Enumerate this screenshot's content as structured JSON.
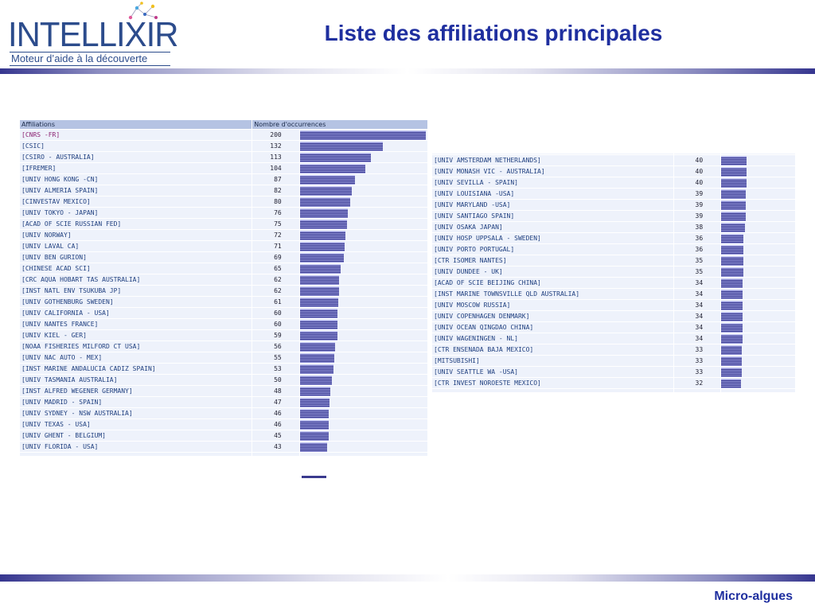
{
  "logo": {
    "word": "INTELLIXIR",
    "tagline": "Moteur d’aide à la découverte"
  },
  "title": "Liste des affiliations principales",
  "footer": "Micro-algues",
  "colors": {
    "title": "#1f2f9f",
    "bar": "#3a3a8e",
    "header": "#b5c3e3",
    "row": "#eef2fb"
  },
  "left_table": {
    "headers": [
      "Affiliations",
      "Nombre d'occurrences"
    ],
    "max_value": 200,
    "rows": [
      {
        "name": "[CNRS -FR]",
        "count": "200",
        "highlight": true
      },
      {
        "name": "[CSIC]",
        "count": "132"
      },
      {
        "name": "[CSIRO - AUSTRALIA]",
        "count": "113"
      },
      {
        "name": "[IFREMER]",
        "count": "104"
      },
      {
        "name": "[UNIV HONG KONG -CN]",
        "count": "87"
      },
      {
        "name": "[UNIV ALMERIA SPAIN]",
        "count": "82"
      },
      {
        "name": "[CINVESTAV MEXICO]",
        "count": "80"
      },
      {
        "name": "[UNIV TOKYO - JAPAN]",
        "count": "76"
      },
      {
        "name": "[ACAD OF SCIE RUSSIAN FED]",
        "count": "75"
      },
      {
        "name": "[UNIV NORWAY]",
        "count": "72"
      },
      {
        "name": "[UNIV LAVAL CA]",
        "count": "71"
      },
      {
        "name": "[UNIV BEN GURION]",
        "count": "69"
      },
      {
        "name": "[CHINESE ACAD SCI]",
        "count": "65"
      },
      {
        "name": "[CRC AQUA HOBART TAS AUSTRALIA]",
        "count": "62"
      },
      {
        "name": "[INST NATL ENV TSUKUBA JP]",
        "count": "62"
      },
      {
        "name": "[UNIV GOTHENBURG SWEDEN]",
        "count": "61"
      },
      {
        "name": "[UNIV CALIFORNIA - USA]",
        "count": "60"
      },
      {
        "name": "[UNIV NANTES FRANCE]",
        "count": "60"
      },
      {
        "name": "[UNIV KIEL - GER]",
        "count": "59"
      },
      {
        "name": "[NOAA FISHERIES MILFORD CT USA]",
        "count": "56"
      },
      {
        "name": "[UNIV NAC AUTO - MEX]",
        "count": "55"
      },
      {
        "name": "[INST MARINE ANDALUCIA CADIZ SPAIN]",
        "count": "53"
      },
      {
        "name": "[UNIV TASMANIA AUSTRALIA]",
        "count": "50"
      },
      {
        "name": "[INST ALFRED WEGENER GERMANY]",
        "count": "48"
      },
      {
        "name": "[UNIV MADRID - SPAIN]",
        "count": "47"
      },
      {
        "name": "[UNIV SYDNEY - NSW AUSTRALIA]",
        "count": "46"
      },
      {
        "name": "[UNIV TEXAS - USA]",
        "count": "46"
      },
      {
        "name": "[UNIV GHENT - BELGIUM]",
        "count": "45"
      },
      {
        "name": "[UNIV FLORIDA - USA]",
        "count": "43"
      }
    ]
  },
  "right_table": {
    "rows": [
      {
        "name": "[UNIV AMSTERDAM NETHERLANDS]",
        "count": "40"
      },
      {
        "name": "[UNIV MONASH VIC - AUSTRALIA]",
        "count": "40"
      },
      {
        "name": "[UNIV SEVILLA - SPAIN]",
        "count": "40"
      },
      {
        "name": "[UNIV LOUISIANA -USA]",
        "count": "39"
      },
      {
        "name": "[UNIV MARYLAND -USA]",
        "count": "39"
      },
      {
        "name": "[UNIV SANTIAGO SPAIN]",
        "count": "39"
      },
      {
        "name": "[UNIV OSAKA JAPAN]",
        "count": "38"
      },
      {
        "name": "[UNIV HOSP UPPSALA - SWEDEN]",
        "count": "36"
      },
      {
        "name": "[UNIV PORTO PORTUGAL]",
        "count": "36"
      },
      {
        "name": "[CTR ISOMER NANTES]",
        "count": "35"
      },
      {
        "name": "[UNIV DUNDEE - UK]",
        "count": "35"
      },
      {
        "name": "[ACAD OF SCIE BEIJING CHINA]",
        "count": "34"
      },
      {
        "name": "[INST MARINE TOWNSVILLE QLD AUSTRALIA]",
        "count": "34"
      },
      {
        "name": "[UNIV MOSCOW RUSSIA]",
        "count": "34"
      },
      {
        "name": "[UNIV COPENHAGEN DENMARK]",
        "count": "34"
      },
      {
        "name": "[UNIV OCEAN QINGDAO CHINA]",
        "count": "34"
      },
      {
        "name": "[UNIV WAGENINGEN - NL]",
        "count": "34"
      },
      {
        "name": "[CTR ENSENADA BAJA MEXICO]",
        "count": "33"
      },
      {
        "name": "[MITSUBISHI]",
        "count": "33"
      },
      {
        "name": "[UNIV SEATTLE WA -USA]",
        "count": "33"
      },
      {
        "name": "[CTR INVEST NOROESTE MEXICO]",
        "count": "32"
      }
    ]
  }
}
